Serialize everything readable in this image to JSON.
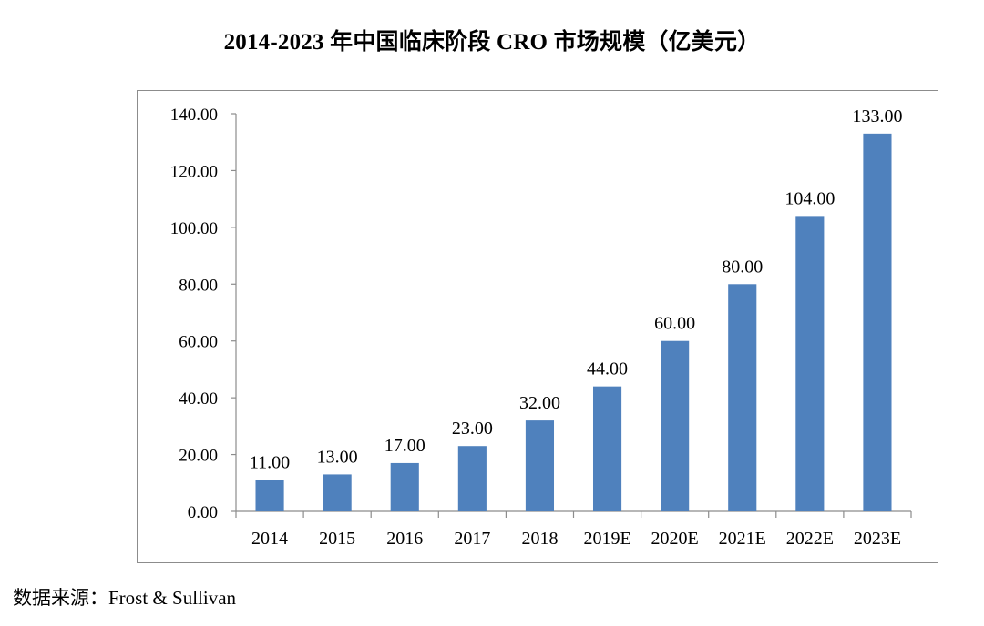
{
  "header": {
    "title": "2014-2023 年中国临床阶段 CRO 市场规模（亿美元）"
  },
  "footer": {
    "source": "数据来源：Frost & Sullivan"
  },
  "chart_data": {
    "type": "bar",
    "title": "2014-2023 年中国临床阶段 CRO 市场规模（亿美元）",
    "categories": [
      "2014",
      "2015",
      "2016",
      "2017",
      "2018",
      "2019E",
      "2020E",
      "2021E",
      "2022E",
      "2023E"
    ],
    "values": [
      11.0,
      13.0,
      17.0,
      23.0,
      32.0,
      44.0,
      60.0,
      80.0,
      104.0,
      133.0
    ],
    "data_labels": [
      "11.00",
      "13.00",
      "17.00",
      "23.00",
      "32.00",
      "44.00",
      "60.00",
      "80.00",
      "104.00",
      "133.00"
    ],
    "ylim": [
      0,
      140
    ],
    "yticks": [
      0,
      20,
      40,
      60,
      80,
      100,
      120,
      140
    ],
    "ytick_labels": [
      "0.00",
      "20.00",
      "40.00",
      "60.00",
      "80.00",
      "100.00",
      "120.00",
      "140.00"
    ],
    "xlabel": "",
    "ylabel": "",
    "grid": false,
    "legend": "none",
    "bar_color": "#4f81bd"
  }
}
